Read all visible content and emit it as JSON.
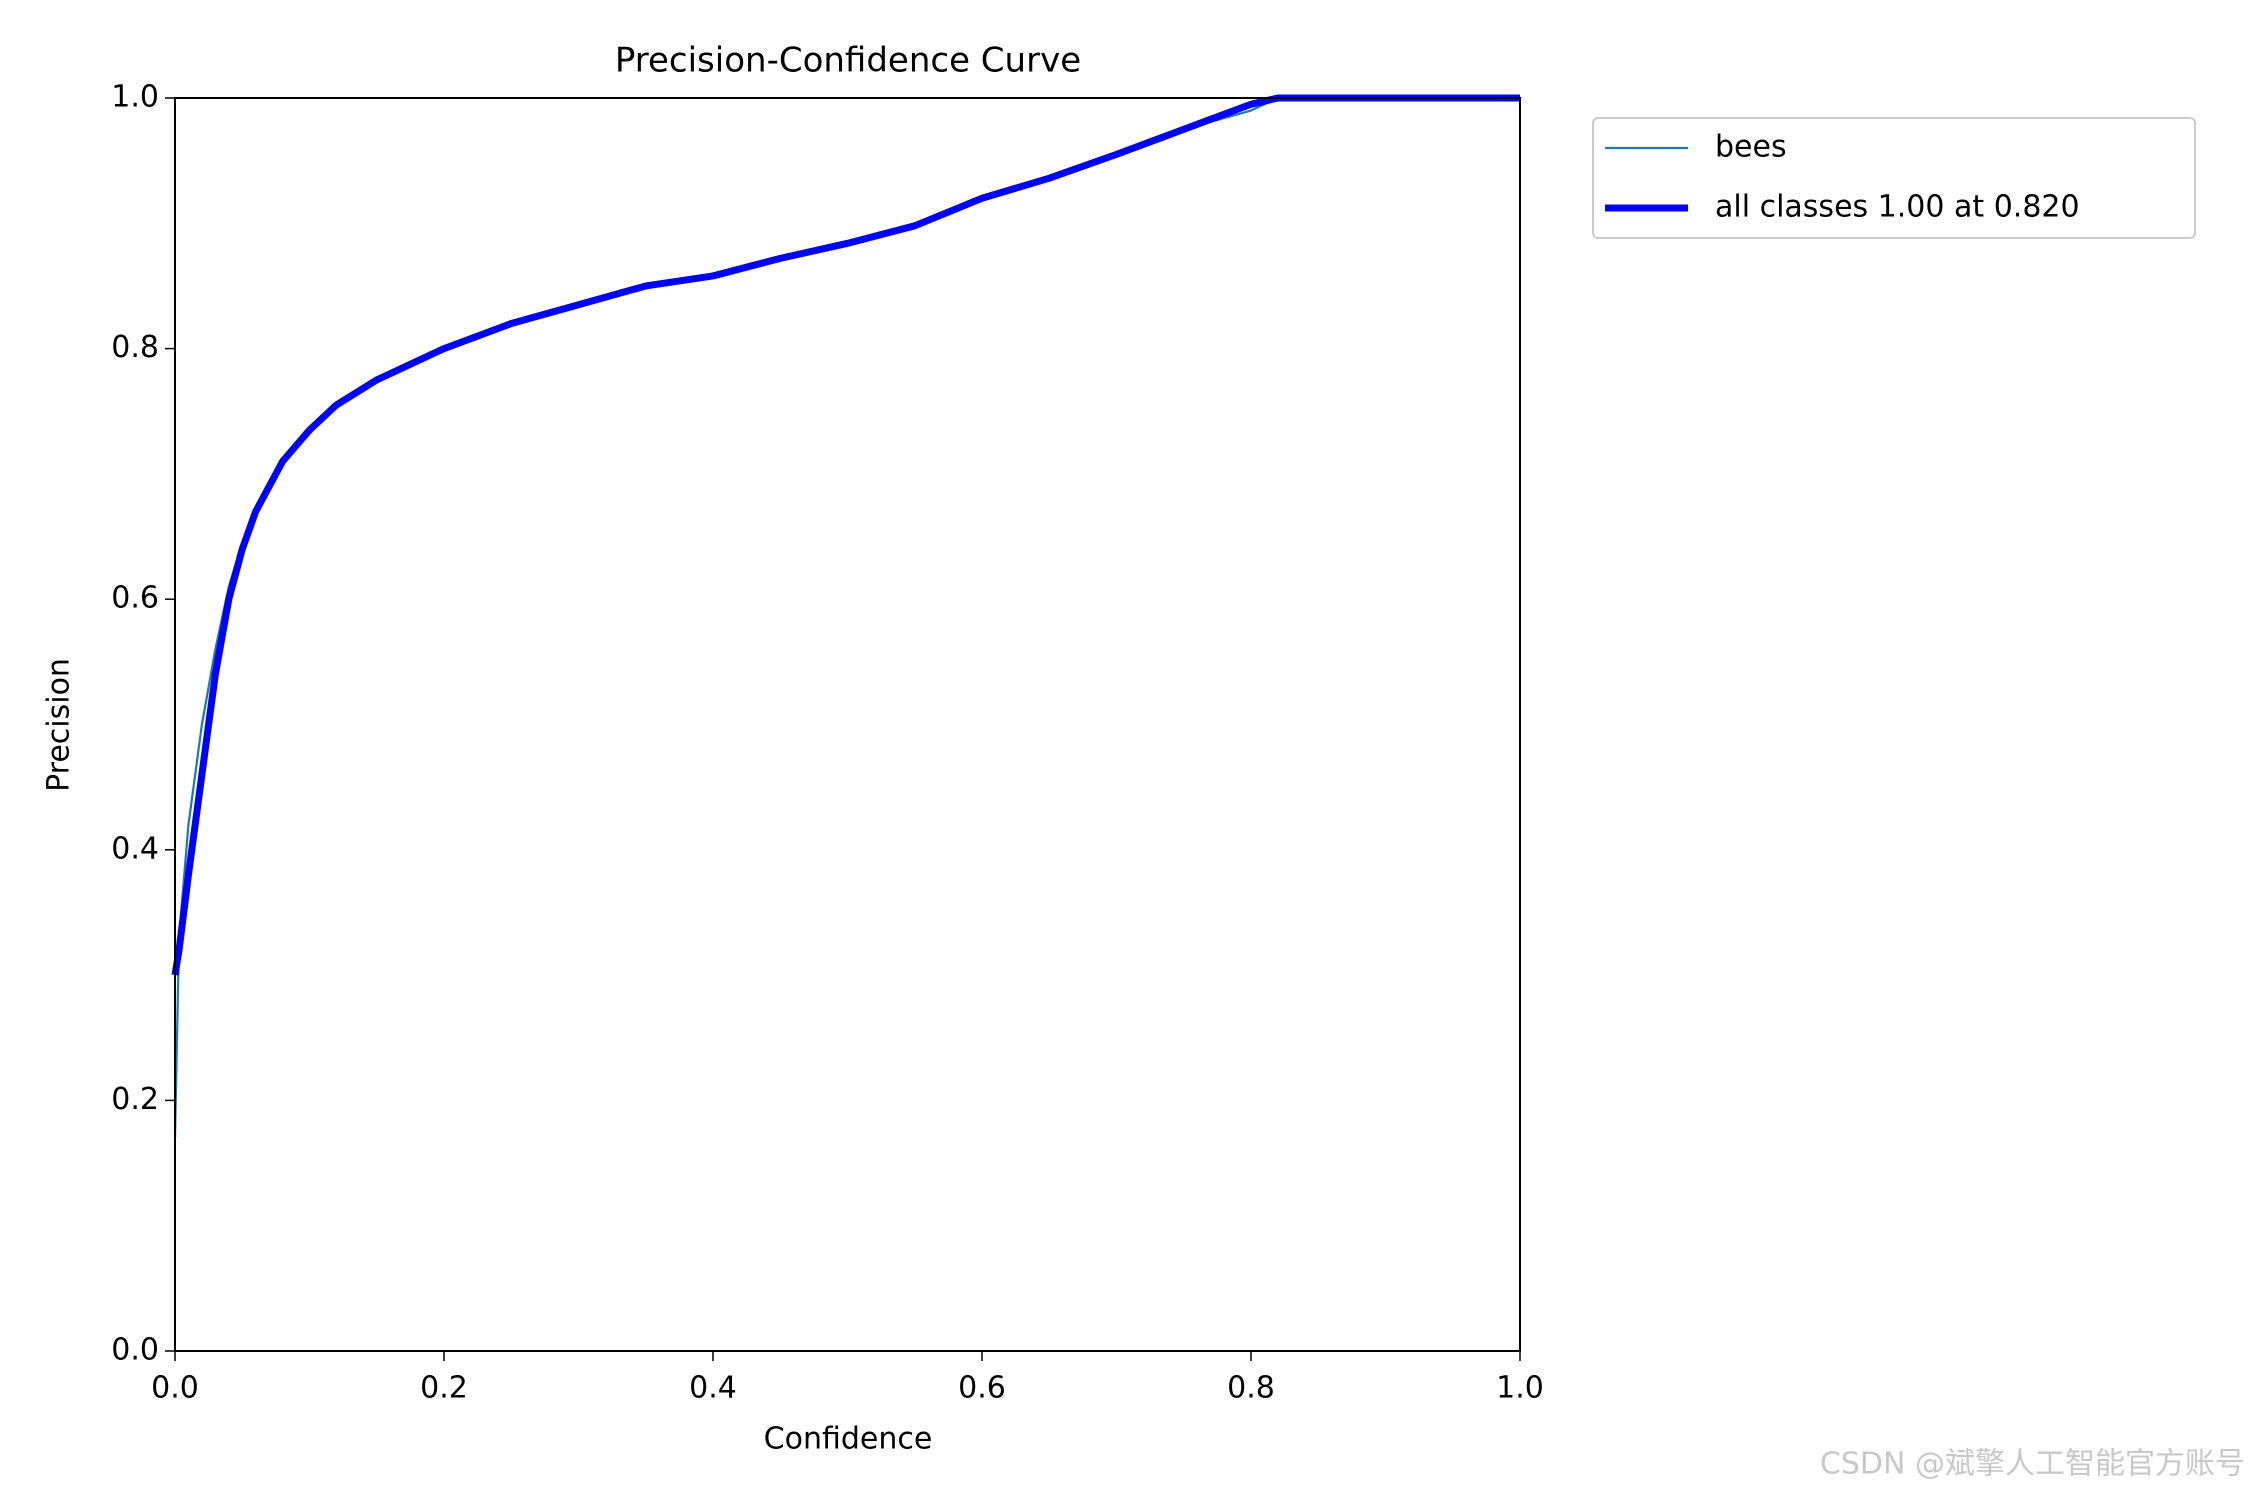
{
  "chart_data": {
    "type": "line",
    "title": "Precision-Confidence Curve",
    "x_label": "Confidence",
    "y_label": "Precision",
    "x": [
      0,
      0.003,
      0.01,
      0.02,
      0.03,
      0.04,
      0.05,
      0.06,
      0.08,
      0.1,
      0.12,
      0.15,
      0.2,
      0.25,
      0.3,
      0.35,
      0.4,
      0.45,
      0.5,
      0.55,
      0.6,
      0.65,
      0.7,
      0.75,
      0.8,
      0.82,
      0.9,
      1.0
    ],
    "series": [
      {
        "name": "bees",
        "color": "#1f77b4",
        "values": [
          0.17,
          0.33,
          0.42,
          0.5,
          0.56,
          0.61,
          0.645,
          0.67,
          0.71,
          0.735,
          0.755,
          0.775,
          0.8,
          0.82,
          0.835,
          0.85,
          0.858,
          0.872,
          0.884,
          0.898,
          0.92,
          0.936,
          0.955,
          0.975,
          0.99,
          1.0,
          1.0,
          1.0
        ]
      },
      {
        "name": "all classes 1.00 at 0.820",
        "color": "#0000ff",
        "values": [
          0.3,
          0.32,
          0.38,
          0.46,
          0.54,
          0.6,
          0.64,
          0.67,
          0.71,
          0.735,
          0.755,
          0.775,
          0.8,
          0.82,
          0.835,
          0.85,
          0.858,
          0.872,
          0.884,
          0.898,
          0.92,
          0.936,
          0.955,
          0.975,
          0.995,
          1.0,
          1.0,
          1.0
        ]
      }
    ],
    "xlim": [
      0,
      1
    ],
    "ylim": [
      0,
      1
    ],
    "xticks": [
      {
        "value": 0,
        "label": "0.0"
      },
      0.2,
      0.4,
      0.6,
      0.8,
      {
        "value": 1,
        "label": "1.0"
      }
    ],
    "yticks": [
      {
        "value": 0,
        "label": "0.0"
      },
      0.2,
      0.4,
      0.6,
      0.8,
      {
        "value": 1,
        "label": "1.0"
      }
    ],
    "legend": "upper-right-outside",
    "watermark": "CSDN @斌擎人工智能官方账号"
  }
}
